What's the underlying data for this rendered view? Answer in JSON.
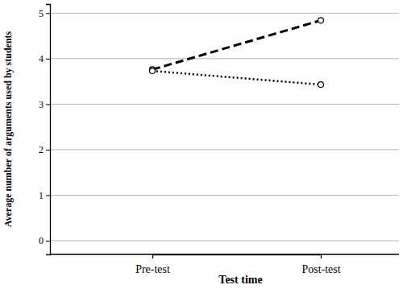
{
  "chart_data": {
    "type": "line",
    "x_label": "Test time",
    "y_label": "Average number of arguments used by students",
    "categories": [
      "Pre-test",
      "Post-test"
    ],
    "series": [
      {
        "color": "#000000",
        "line_style": "dashed",
        "marker": "circle",
        "values": [
          3.76,
          4.84
        ]
      },
      {
        "color": "#000000",
        "line_style": "dotted",
        "marker": "circle",
        "values": [
          3.73,
          3.43
        ]
      }
    ],
    "ylim": [
      -0.3,
      5.2
    ],
    "yticks": [
      0,
      1,
      2,
      3,
      4,
      5
    ],
    "grid": true
  }
}
